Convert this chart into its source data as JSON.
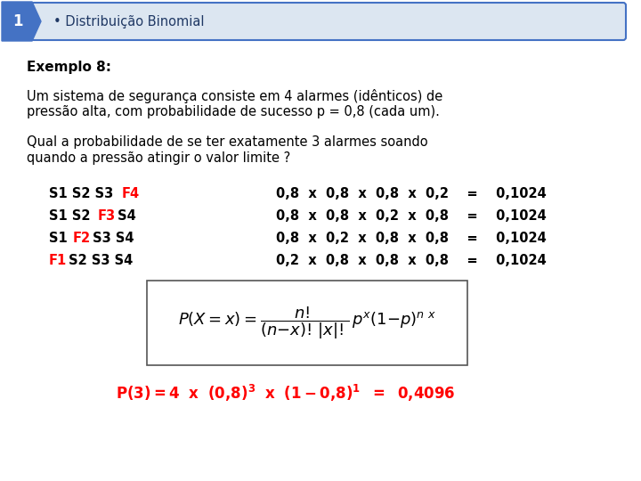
{
  "title_number": "1",
  "title_text": "• Distribuição Binomial",
  "title_bg": "#dce6f1",
  "title_border": "#4472c4",
  "title_number_bg": "#4472c4",
  "bg_color": "#ffffff",
  "exemplo_label": "Exemplo 8:",
  "paragraph1_line1": "Um sistema de segurança consiste em 4 alarmes (idênticos) de",
  "paragraph1_line2": "pressão alta, com probabilidade de sucesso p = 0,8 (cada um).",
  "paragraph2_line1": "Qual a probabilidade de se ter exatamente 3 alarmes soando",
  "paragraph2_line2": "quando a pressão atingir o valor limite ?",
  "row0_black1": "S1 S2 S3 ",
  "row0_red": "F4",
  "row0_black2": "",
  "row0_right": "0,8  x  0,8  x  0,8  x  0,2    =    0,1024",
  "row1_black1": "S1 S2 ",
  "row1_red": "F3",
  "row1_black2": " S4",
  "row1_right": "0,8  x  0,8  x  0,2  x  0,8    =    0,1024",
  "row2_black1": "S1 ",
  "row2_red": "F2",
  "row2_black2": " S3 S4",
  "row2_right": "0,8  x  0,2  x  0,8  x  0,8    =    0,1024",
  "row3_black1": "",
  "row3_red": "F1",
  "row3_black2": " S2 S3 S4",
  "row3_right": "0,2  x  0,8  x  0,8  x  0,8    =    0,1024",
  "result_color": "#ff0000",
  "table_font_size": 10.5,
  "body_font_size": 10.5,
  "title_font_size": 10.5
}
